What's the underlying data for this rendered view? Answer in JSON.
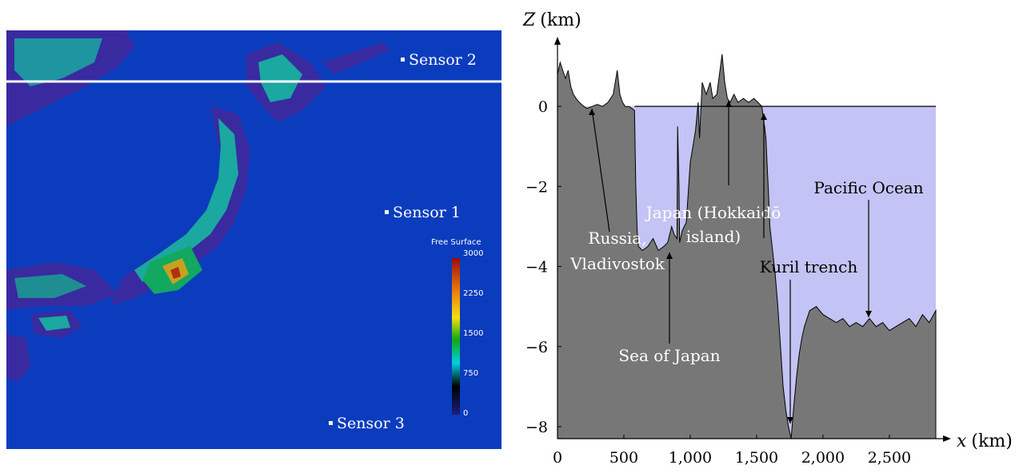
{
  "map": {
    "sensors": [
      {
        "label": "Sensor 2"
      },
      {
        "label": "Sensor 1"
      },
      {
        "label": "Sensor 3"
      }
    ],
    "colorbar": {
      "title": "Free Surface",
      "ticks": [
        "3000",
        "2250",
        "1500",
        "750",
        "0"
      ],
      "range": [
        0,
        3000
      ],
      "colors": [
        "#1b1f7a",
        "#000000",
        "#00d0e0",
        "#12a810",
        "#f2e010",
        "#f0800a",
        "#9a0c0c"
      ]
    },
    "colors": {
      "sea": "#0a3cbd",
      "land_low": "#3a2aa0",
      "land_high": "#1aa8a0",
      "transect": "#ffffff"
    }
  },
  "chart_data": {
    "type": "area",
    "xlabel_var": "x",
    "xlabel_unit": "(km)",
    "ylabel_var": "Z",
    "ylabel_unit": "(km)",
    "xlim": [
      0,
      2850
    ],
    "ylim": [
      -8.3,
      1.5
    ],
    "xticks": [
      0,
      500,
      1000,
      1500,
      2000,
      2500
    ],
    "xtick_labels": [
      "0",
      "500",
      "1,000",
      "1,500",
      "2,000",
      "2,500"
    ],
    "yticks": [
      0,
      -2,
      -4,
      -6,
      -8
    ],
    "ytick_labels": [
      "0",
      "−2",
      "−4",
      "−6",
      "−8"
    ],
    "sea_level": 0,
    "colors": {
      "ground": "#777777",
      "water": "#c3c3f5",
      "line": "#000000"
    },
    "profile": {
      "x": [
        0,
        20,
        40,
        60,
        80,
        100,
        120,
        150,
        180,
        220,
        260,
        300,
        340,
        380,
        420,
        450,
        470,
        490,
        510,
        540,
        560,
        580,
        590,
        600,
        610,
        640,
        680,
        720,
        760,
        800,
        830,
        860,
        880,
        900,
        905,
        915,
        920,
        940,
        970,
        1000,
        1040,
        1060,
        1070,
        1090,
        1120,
        1150,
        1170,
        1200,
        1220,
        1240,
        1260,
        1280,
        1300,
        1330,
        1360,
        1400,
        1440,
        1480,
        1510,
        1540,
        1550,
        1560,
        1570,
        1580,
        1590,
        1600,
        1610,
        1620,
        1640,
        1660,
        1680,
        1700,
        1720,
        1740,
        1760,
        1780,
        1800,
        1820,
        1840,
        1860,
        1900,
        1950,
        2000,
        2050,
        2100,
        2150,
        2200,
        2250,
        2300,
        2350,
        2400,
        2450,
        2500,
        2550,
        2600,
        2650,
        2700,
        2750,
        2800,
        2850
      ],
      "z": [
        0.8,
        1.1,
        0.9,
        0.7,
        0.9,
        0.5,
        0.3,
        0.15,
        0.05,
        -0.05,
        0.0,
        0.05,
        0.0,
        0.1,
        0.3,
        0.9,
        0.3,
        0.1,
        0.0,
        0.0,
        -0.05,
        -0.1,
        -2.0,
        -3.1,
        -3.5,
        -3.6,
        -3.5,
        -3.3,
        -3.6,
        -3.5,
        -3.4,
        -3.0,
        -3.2,
        -3.3,
        -0.5,
        -2.0,
        -3.4,
        -3.1,
        -2.9,
        -1.4,
        -0.6,
        0.1,
        -0.8,
        0.6,
        0.3,
        0.6,
        0.2,
        0.3,
        0.8,
        1.3,
        0.6,
        0.2,
        0.1,
        0.3,
        0.1,
        0.2,
        0.1,
        0.2,
        0.1,
        0.0,
        -0.3,
        -0.5,
        -0.8,
        -1.5,
        -2.2,
        -3.0,
        -3.3,
        -3.6,
        -4.2,
        -5.0,
        -6.0,
        -7.0,
        -7.6,
        -8.0,
        -8.3,
        -7.5,
        -6.8,
        -6.2,
        -5.8,
        -5.5,
        -5.1,
        -5.0,
        -5.2,
        -5.3,
        -5.4,
        -5.3,
        -5.5,
        -5.4,
        -5.5,
        -5.3,
        -5.5,
        -5.4,
        -5.6,
        -5.5,
        -5.4,
        -5.3,
        -5.5,
        -5.2,
        -5.4,
        -5.1
      ]
    },
    "annotations": [
      {
        "lines": [
          "Russia,",
          "Vladivostok"
        ],
        "color": "#ffffff"
      },
      {
        "lines": [
          "Sea of Japan"
        ],
        "color": "#ffffff"
      },
      {
        "lines": [
          "Japan (Hokkaidō",
          "island)"
        ],
        "color": "#ffffff"
      },
      {
        "lines": [
          "Kuril trench"
        ],
        "color": "#000000"
      },
      {
        "lines": [
          "Pacific Ocean"
        ],
        "color": "#000000"
      }
    ]
  }
}
